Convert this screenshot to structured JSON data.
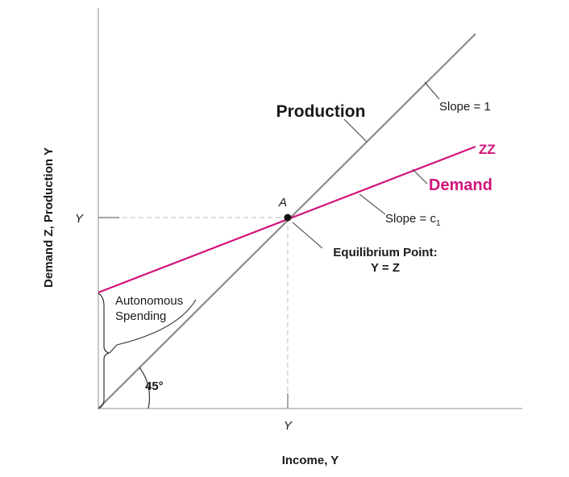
{
  "diagram": {
    "y_axis_label": "Demand Z, Production Y",
    "x_axis_label": "Income, Y",
    "y_tick_label": "Y",
    "x_tick_label": "Y",
    "production_label": "Production",
    "production_slope_label": "Slope = 1",
    "demand_curve_name": "ZZ",
    "demand_label": "Demand",
    "demand_slope_label": "Slope = c",
    "demand_slope_subscript": "1",
    "point_label": "A",
    "equilibrium_line1": "Equilibrium Point:",
    "equilibrium_line2": "Y = Z",
    "autonomous_line1": "Autonomous",
    "autonomous_line2": "Spending",
    "angle_label": "45°"
  },
  "colors": {
    "production_line": "#8c8c8c",
    "demand_line": "#d1157a",
    "demand_text": "#d1157a",
    "axis": "#b5b5b5",
    "guide": "#c8c8c8",
    "text": "#1a1a1a"
  }
}
